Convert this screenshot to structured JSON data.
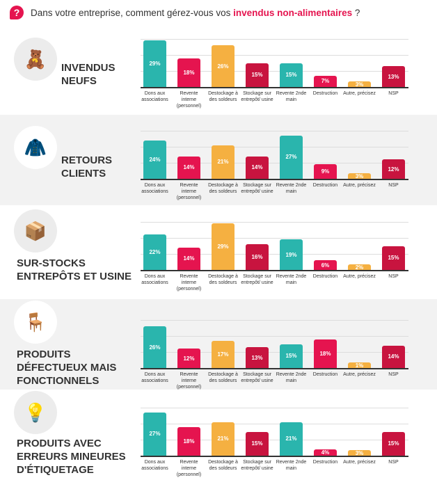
{
  "header": {
    "question_start": "Dans votre entreprise, comment gérez-vous vos ",
    "question_highlight": "invendus non-alimentaires",
    "question_end": " ?"
  },
  "colors": [
    "#2ab5ad",
    "#e5144f",
    "#f5b041",
    "#c8143f",
    "#2ab5ad",
    "#e5144f",
    "#f5b041",
    "#c8143f"
  ],
  "chart_data": [
    {
      "type": "bar",
      "title": "Invendus neufs",
      "icon": "teddy-bear-icon",
      "categories": [
        "Dons aux associations",
        "Revente interne (personnel)",
        "Destockage à des soldeurs",
        "Stockage sur entrepôt/ usine",
        "Revente 2nde main",
        "Destruction",
        "Autre, précisez",
        "NSP"
      ],
      "values": [
        29,
        18,
        26,
        15,
        15,
        7,
        3,
        13
      ],
      "labels": [
        "29%",
        "18%",
        "26%",
        "15%",
        "15%",
        "7%",
        "3%",
        "13%"
      ],
      "ylim": [
        0,
        30
      ]
    },
    {
      "type": "bar",
      "title": "Retours clients",
      "icon": "jacket-icon",
      "categories": [
        "Dons aux associations",
        "Revente interne (personnel)",
        "Destockage à des soldeurs",
        "Stockage sur entrepôt/ usine",
        "Revente 2nde main",
        "Destruction",
        "Autre, précisez",
        "NSP"
      ],
      "values": [
        24,
        14,
        21,
        14,
        27,
        9,
        3,
        12
      ],
      "labels": [
        "24%",
        "14%",
        "21%",
        "14%",
        "27%",
        "9%",
        "3%",
        "12%"
      ],
      "ylim": [
        0,
        30
      ]
    },
    {
      "type": "bar",
      "title": "Sur-stocks entrepôts et usine",
      "icon": "boxes-icon",
      "categories": [
        "Dons aux associations",
        "Revente interne (personnel)",
        "Destockage à des soldeurs",
        "Stockage sur entrepôt/ usine",
        "Revente 2nde main",
        "Destruction",
        "Autre, précisez",
        "NSP"
      ],
      "values": [
        22,
        14,
        29,
        16,
        19,
        6,
        2,
        15
      ],
      "labels": [
        "22%",
        "14%",
        "29%",
        "16%",
        "19%",
        "6%",
        "2%",
        "15%"
      ],
      "ylim": [
        0,
        30
      ]
    },
    {
      "type": "bar",
      "title": "Produits défectueux mais fonctionnels",
      "icon": "chair-icon",
      "categories": [
        "Dons aux associations",
        "Revente interne (personnel)",
        "Destockage à des soldeurs",
        "Stockage sur entrepôt/ usine",
        "Revente 2nde main",
        "Destruction",
        "Autre, précisez",
        "NSP"
      ],
      "values": [
        26,
        12,
        17,
        13,
        15,
        18,
        1,
        14
      ],
      "labels": [
        "26%",
        "12%",
        "17%",
        "13%",
        "15%",
        "18%",
        "1%",
        "14%"
      ],
      "ylim": [
        0,
        30
      ]
    },
    {
      "type": "bar",
      "title": "Produits avec erreurs mineures d'étiquetage",
      "icon": "lamp-icon",
      "categories": [
        "Dons aux associations",
        "Revente interne (personnel)",
        "Destockage à des soldeurs",
        "Stockage sur entrepôt/ usine",
        "Revente 2nde main",
        "Destruction",
        "Autre, précisez",
        "NSP"
      ],
      "values": [
        27,
        18,
        21,
        15,
        21,
        4,
        3,
        15
      ],
      "labels": [
        "27%",
        "18%",
        "21%",
        "15%",
        "21%",
        "4%",
        "3%",
        "15%"
      ],
      "ylim": [
        0,
        30
      ]
    }
  ]
}
